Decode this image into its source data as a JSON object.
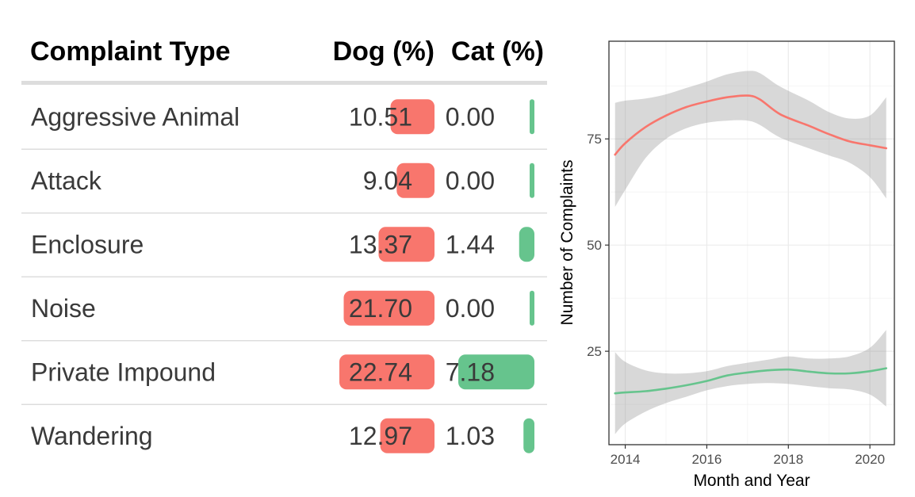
{
  "chart_data": [
    {
      "type": "table",
      "columns": [
        "Complaint Type",
        "Dog (%)",
        "Cat (%)"
      ],
      "rows": [
        {
          "label": "Aggressive Animal",
          "dog": "10.51",
          "cat": "0.00"
        },
        {
          "label": "Attack",
          "dog": "9.04",
          "cat": "0.00"
        },
        {
          "label": "Enclosure",
          "dog": "13.37",
          "cat": "1.44"
        },
        {
          "label": "Noise",
          "dog": "21.70",
          "cat": "0.00"
        },
        {
          "label": "Private Impound",
          "dog": "22.74",
          "cat": "7.18"
        },
        {
          "label": "Wandering",
          "dog": "12.97",
          "cat": "1.03"
        }
      ],
      "colors": {
        "dog": "#f8766d",
        "cat": "#66c48d",
        "rule": "#dddddd"
      }
    },
    {
      "type": "line",
      "xlabel": "Month and Year",
      "ylabel": "Number of Complaints",
      "xlim": [
        2013.6,
        2020.6
      ],
      "ylim": [
        3,
        98
      ],
      "xticks": [
        2014,
        2016,
        2018,
        2020
      ],
      "yticks": [
        25,
        50,
        75
      ],
      "grid": true,
      "series": [
        {
          "color": "#f8766d",
          "x": [
            2013.75,
            2014,
            2014.5,
            2015,
            2015.5,
            2016,
            2016.5,
            2017,
            2017.3,
            2017.8,
            2018.5,
            2019,
            2019.5,
            2020,
            2020.4
          ],
          "y": [
            71.3,
            74,
            77.8,
            80.5,
            82.5,
            83.8,
            84.8,
            85.2,
            84.3,
            80.8,
            78.1,
            76.1,
            74.4,
            73.5,
            72.8
          ],
          "lower": [
            59,
            63,
            70.5,
            75,
            77.5,
            78.8,
            79.3,
            79.3,
            78.3,
            75.3,
            72.8,
            71.1,
            69.4,
            66,
            61
          ],
          "upper": [
            83.5,
            84,
            84.5,
            85.5,
            87,
            88.5,
            90.2,
            91,
            90.5,
            87.3,
            84,
            81.3,
            79.8,
            80.5,
            84.8
          ]
        },
        {
          "color": "#66c48d",
          "x": [
            2013.75,
            2014,
            2014.5,
            2015,
            2015.5,
            2016,
            2016.5,
            2017,
            2017.5,
            2018,
            2018.5,
            2019,
            2019.5,
            2020,
            2020.4
          ],
          "y": [
            15.1,
            15.3,
            15.6,
            16.2,
            17,
            18,
            19.3,
            20,
            20.5,
            20.7,
            20.2,
            19.8,
            19.8,
            20.3,
            21
          ],
          "lower": [
            5.5,
            8,
            10.8,
            12.8,
            14.3,
            15.8,
            16.8,
            17.3,
            17.5,
            17.3,
            16.8,
            16.3,
            16,
            14.8,
            12
          ],
          "upper": [
            24.8,
            22.5,
            20.5,
            19.8,
            19.8,
            20.3,
            21.5,
            22.3,
            23,
            23.8,
            23.3,
            23.3,
            23.8,
            25.8,
            30
          ]
        }
      ]
    }
  ]
}
